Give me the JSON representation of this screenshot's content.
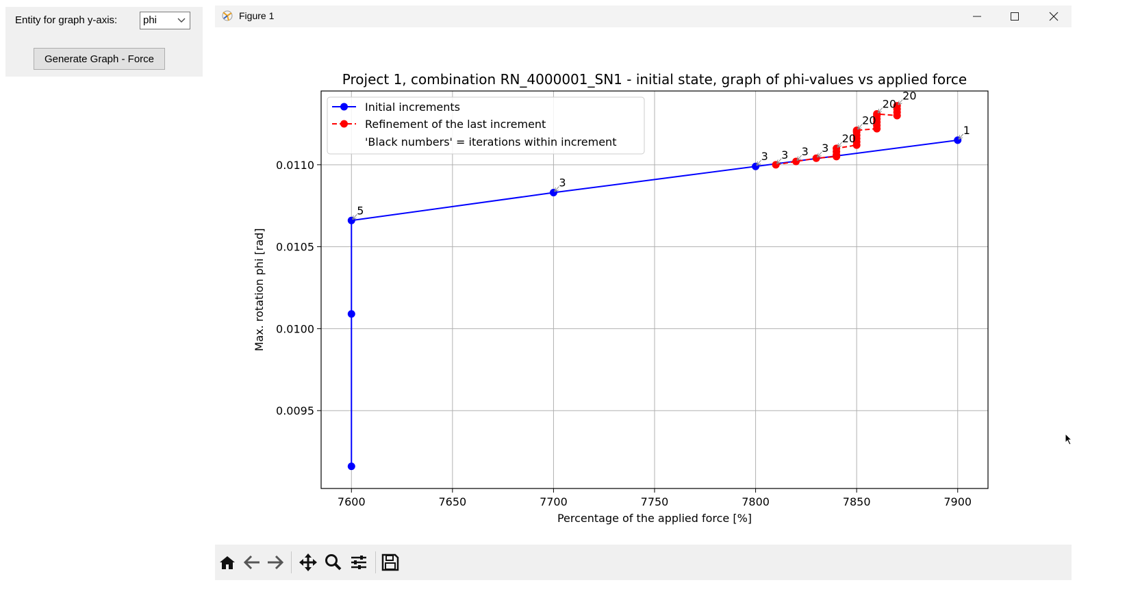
{
  "controls": {
    "label": "Entity for graph y-axis:",
    "select_value": "phi",
    "generate_button": "Generate Graph - Force"
  },
  "figure_window": {
    "title": "Figure 1",
    "minimize_icon": "minimize-icon",
    "maximize_icon": "maximize-icon",
    "close_icon": "close-icon"
  },
  "toolbar": {
    "icons": [
      "home-icon",
      "back-arrow-icon",
      "forward-arrow-icon",
      "pan-icon",
      "zoom-icon",
      "configure-subplots-icon",
      "save-icon"
    ]
  },
  "chart_data": {
    "type": "line",
    "title": "Project 1, combination RN_4000001_SN1 - initial state, graph of phi-values vs applied force",
    "xlabel": "Percentage of the applied force [%]",
    "ylabel": "Max. rotation phi [rad]",
    "xlim": [
      7585,
      7915
    ],
    "ylim": [
      0.009025,
      0.01145
    ],
    "xticks": [
      7600,
      7650,
      7700,
      7750,
      7800,
      7850,
      7900
    ],
    "yticks": [
      0.0095,
      0.01,
      0.0105,
      0.011
    ],
    "ytick_labels": [
      "0.0095",
      "0.0100",
      "0.0105",
      "0.0110"
    ],
    "grid": true,
    "legend_position": "upper-left",
    "legend_note": "'Black numbers' = iterations within increment",
    "colors": {
      "initial": "#0000ff",
      "refinement": "#ff0000"
    },
    "series": [
      {
        "name": "Initial increments",
        "style": "solid",
        "x": [
          7600,
          7600,
          7600,
          7700,
          7800,
          7900
        ],
        "y": [
          0.00916,
          0.01009,
          0.01066,
          0.01083,
          0.01099,
          0.01115
        ]
      },
      {
        "name": "Refinement of the last increment",
        "style": "dashed",
        "x": [
          7810,
          7820,
          7830,
          7840,
          7840,
          7840,
          7840,
          7850,
          7850,
          7850,
          7850,
          7850,
          7850,
          7860,
          7860,
          7860,
          7860,
          7860,
          7860,
          7870,
          7870,
          7870,
          7870
        ],
        "y": [
          0.011,
          0.01102,
          0.01104,
          0.01105,
          0.01106,
          0.01108,
          0.0111,
          0.01112,
          0.01114,
          0.01116,
          0.01118,
          0.0112,
          0.01121,
          0.01122,
          0.01124,
          0.01126,
          0.01128,
          0.0113,
          0.01131,
          0.0113,
          0.01132,
          0.01134,
          0.01136
        ]
      }
    ],
    "annotations": [
      {
        "x": 7600,
        "y": 0.01066,
        "text": "5"
      },
      {
        "x": 7700,
        "y": 0.01083,
        "text": "3"
      },
      {
        "x": 7800,
        "y": 0.01099,
        "text": "3"
      },
      {
        "x": 7810,
        "y": 0.011,
        "text": "3"
      },
      {
        "x": 7820,
        "y": 0.01102,
        "text": "3"
      },
      {
        "x": 7830,
        "y": 0.01104,
        "text": "3"
      },
      {
        "x": 7840,
        "y": 0.0111,
        "text": "20"
      },
      {
        "x": 7850,
        "y": 0.01121,
        "text": "20"
      },
      {
        "x": 7860,
        "y": 0.01131,
        "text": "20"
      },
      {
        "x": 7870,
        "y": 0.01136,
        "text": "20"
      },
      {
        "x": 7900,
        "y": 0.01115,
        "text": "1"
      }
    ]
  }
}
